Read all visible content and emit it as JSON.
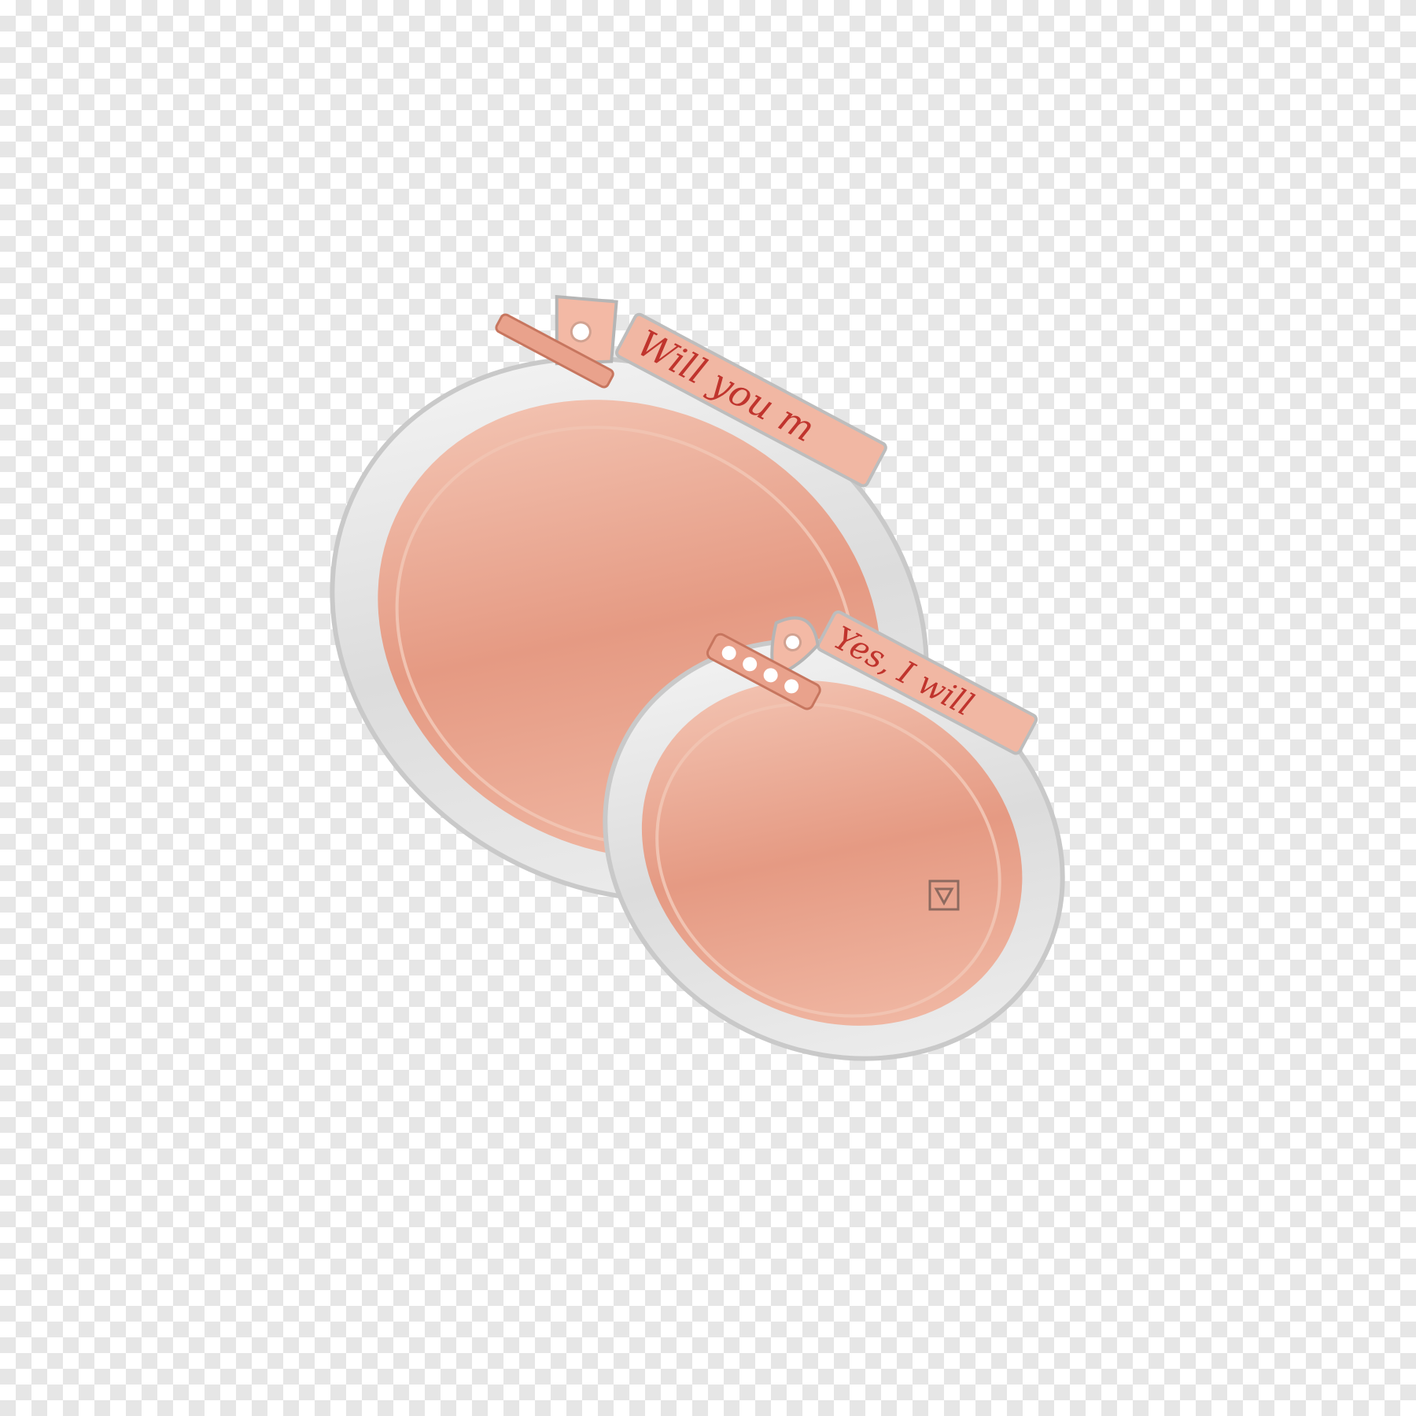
{
  "image": {
    "subject": "ring-pair",
    "background": "transparent",
    "colors": {
      "silver_light": "#f4f4f4",
      "silver_mid": "#d9d9d9",
      "silver_dark": "#b8b8b8",
      "rose_light": "#f6c7b4",
      "rose_mid": "#e79c86",
      "rose_dark": "#c86a56",
      "engraving_red": "#c0342d"
    }
  },
  "rings": [
    {
      "id": "large-ring",
      "engraving": "Will you m",
      "accent": "single-diamond"
    },
    {
      "id": "small-ring",
      "engraving": "Yes, I will",
      "accent": "diamond-bar"
    }
  ],
  "hallmark": {
    "icon": "brand-logo-icon"
  }
}
